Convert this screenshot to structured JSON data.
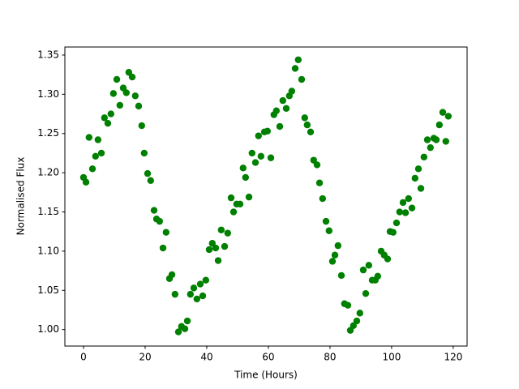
{
  "chart_data": {
    "type": "scatter",
    "xlabel": "Time (Hours)",
    "ylabel": "Normalised Flux",
    "color": "#008000",
    "grid": false,
    "xlim": [
      -6.05,
      124.5
    ],
    "ylim": [
      0.979,
      1.3603
    ],
    "xticks": [
      0,
      20,
      40,
      60,
      80,
      100,
      120
    ],
    "yticks": [
      {
        "value": 1.0,
        "label": "1.00"
      },
      {
        "value": 1.05,
        "label": "1.05"
      },
      {
        "value": 1.1,
        "label": "1.10"
      },
      {
        "value": 1.15,
        "label": "1.15"
      },
      {
        "value": 1.2,
        "label": "1.20"
      },
      {
        "value": 1.25,
        "label": "1.25"
      },
      {
        "value": 1.3,
        "label": "1.30"
      },
      {
        "value": 1.35,
        "label": "1.35"
      }
    ],
    "x": [
      0,
      0.8,
      1.8,
      2.9,
      3.9,
      4.7,
      5.8,
      6.8,
      7.9,
      8.9,
      9.7,
      10.8,
      11.8,
      12.9,
      13.9,
      14.7,
      15.8,
      16.8,
      17.9,
      18.9,
      19.7,
      20.8,
      21.8,
      22.9,
      23.7,
      24.7,
      25.8,
      26.8,
      27.9,
      28.7,
      29.7,
      30.8,
      31.8,
      32.9,
      33.7,
      34.7,
      35.8,
      36.8,
      37.9,
      38.7,
      39.7,
      40.8,
      41.8,
      42.9,
      43.7,
      44.7,
      45.8,
      46.8,
      47.9,
      48.7,
      49.7,
      50.8,
      51.8,
      52.6,
      53.7,
      54.7,
      55.8,
      56.8,
      57.6,
      58.7,
      59.7,
      60.8,
      61.8,
      62.6,
      63.7,
      64.7,
      65.8,
      66.8,
      67.6,
      68.7,
      69.7,
      70.8,
      71.8,
      72.6,
      73.7,
      74.7,
      75.8,
      76.6,
      77.6,
      78.7,
      79.7,
      80.8,
      81.6,
      82.6,
      83.7,
      84.7,
      85.8,
      86.6,
      87.6,
      88.7,
      89.7,
      90.8,
      91.6,
      92.6,
      93.7,
      94.7,
      95.5,
      96.6,
      97.6,
      98.7,
      99.5,
      100.5,
      101.6,
      102.6,
      103.7,
      104.5,
      105.5,
      106.6,
      107.6,
      108.7,
      109.5,
      110.5,
      111.6,
      112.6,
      113.7,
      114.5,
      115.5,
      116.6,
      117.6,
      118.4
    ],
    "values": [
      1.194,
      1.188,
      1.245,
      1.205,
      1.221,
      1.242,
      1.225,
      1.27,
      1.263,
      1.275,
      1.301,
      1.319,
      1.286,
      1.308,
      1.302,
      1.328,
      1.322,
      1.298,
      1.285,
      1.26,
      1.225,
      1.199,
      1.19,
      1.152,
      1.141,
      1.138,
      1.104,
      1.124,
      1.065,
      1.07,
      1.045,
      0.997,
      1.004,
      1.001,
      1.011,
      1.045,
      1.053,
      1.039,
      1.058,
      1.043,
      1.063,
      1.102,
      1.11,
      1.104,
      1.088,
      1.127,
      1.106,
      1.123,
      1.168,
      1.15,
      1.16,
      1.16,
      1.206,
      1.194,
      1.169,
      1.225,
      1.213,
      1.247,
      1.221,
      1.252,
      1.253,
      1.219,
      1.274,
      1.279,
      1.259,
      1.292,
      1.282,
      1.298,
      1.304,
      1.333,
      1.344,
      1.319,
      1.27,
      1.261,
      1.252,
      1.216,
      1.21,
      1.187,
      1.167,
      1.138,
      1.126,
      1.087,
      1.095,
      1.107,
      1.069,
      1.033,
      1.031,
      0.999,
      1.005,
      1.011,
      1.021,
      1.076,
      1.046,
      1.082,
      1.063,
      1.063,
      1.068,
      1.1,
      1.095,
      1.09,
      1.125,
      1.124,
      1.136,
      1.15,
      1.162,
      1.149,
      1.167,
      1.155,
      1.193,
      1.205,
      1.18,
      1.22,
      1.242,
      1.232,
      1.244,
      1.242,
      1.261,
      1.277,
      1.24,
      1.272
    ]
  }
}
